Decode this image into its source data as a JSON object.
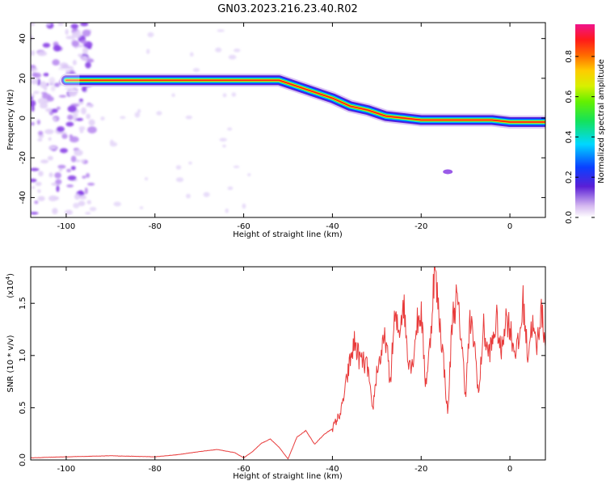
{
  "figure_title": "GN03.2023.216.23.40.R02",
  "colors": {
    "snr_line": "#e83a3a",
    "axis": "#000000"
  },
  "chart_data": [
    {
      "type": "heatmap",
      "xlabel": "Height of straight line (km)",
      "ylabel": "Frequency (Hz)",
      "xlim": [
        -108,
        8
      ],
      "ylim": [
        -50,
        48
      ],
      "xticks": [
        -100,
        -80,
        -60,
        -40,
        -20,
        0
      ],
      "yticks": [
        -40,
        -20,
        0,
        20,
        40
      ],
      "colorbar": {
        "label": "Normalized spectral amplitude",
        "range": [
          0,
          0.96
        ],
        "ticks": [
          0.0,
          0.2,
          0.4,
          0.6,
          0.8
        ],
        "tick_labels": [
          "0.0",
          "0.2",
          "0.4",
          "0.6",
          "0.8"
        ]
      },
      "ridge": {
        "x": [
          -100,
          -52,
          -48,
          -44,
          -40,
          -36,
          -32,
          -28,
          -24,
          -20,
          -16,
          -12,
          -8,
          -4,
          0,
          4,
          8
        ],
        "frequency": [
          19,
          19,
          16,
          13,
          10,
          6,
          4,
          1,
          0,
          -1,
          -1,
          -1,
          -1,
          -1,
          -2,
          -2,
          -2
        ]
      },
      "noise_band": {
        "x_range": [
          -108,
          -98
        ],
        "freq_range": [
          -48,
          48
        ],
        "max_amplitude": 0.25
      },
      "isolated_features": [
        {
          "x": -14,
          "frequency": -27,
          "amplitude": 0.35
        }
      ]
    },
    {
      "type": "line",
      "xlabel": "Height of straight line (km)",
      "ylabel": "SNR (10 * v/v)",
      "scale_label": "(x10",
      "scale_exp": "4",
      "scale_close": ")",
      "xlim": [
        -108,
        8
      ],
      "ylim": [
        0,
        1.85
      ],
      "xticks": [
        -100,
        -80,
        -60,
        -40,
        -20,
        0
      ],
      "yticks": [
        0.0,
        0.5,
        1.0,
        1.5
      ],
      "ytick_labels": [
        "0.0",
        "0.5",
        "1.0",
        "1.5"
      ],
      "series": [
        {
          "x": [
            -108,
            -100,
            -90,
            -80,
            -75,
            -70,
            -66,
            -62,
            -60,
            -58,
            -56,
            -54,
            -52,
            -50,
            -48,
            -46,
            -44,
            -42,
            -40,
            -38,
            -36,
            -35,
            -34,
            -32,
            -31,
            -30,
            -28,
            -27,
            -26,
            -25,
            -24,
            -23,
            -22,
            -21,
            -20,
            -19,
            -18,
            -17,
            -16,
            -15,
            -14,
            -13,
            -12,
            -11,
            -10,
            -9,
            -8,
            -7,
            -6,
            -5,
            -4,
            -3,
            -2,
            -1,
            0,
            1,
            2,
            3,
            4,
            5,
            6,
            7,
            8
          ],
          "values": [
            0.02,
            0.03,
            0.04,
            0.03,
            0.05,
            0.08,
            0.1,
            0.07,
            0.02,
            0.08,
            0.16,
            0.2,
            0.12,
            0.01,
            0.22,
            0.28,
            0.15,
            0.24,
            0.3,
            0.47,
            0.95,
            1.13,
            0.98,
            0.88,
            0.45,
            0.85,
            1.18,
            0.72,
            1.35,
            1.22,
            1.53,
            1.0,
            0.9,
            1.3,
            1.42,
            0.72,
            1.1,
            1.85,
            1.4,
            0.98,
            0.42,
            1.35,
            1.55,
            1.2,
            0.62,
            1.32,
            1.12,
            0.6,
            1.28,
            1.02,
            1.1,
            1.35,
            1.0,
            1.38,
            1.28,
            1.05,
            1.1,
            1.52,
            1.0,
            1.32,
            1.05,
            1.45,
            1.12
          ]
        }
      ]
    }
  ]
}
